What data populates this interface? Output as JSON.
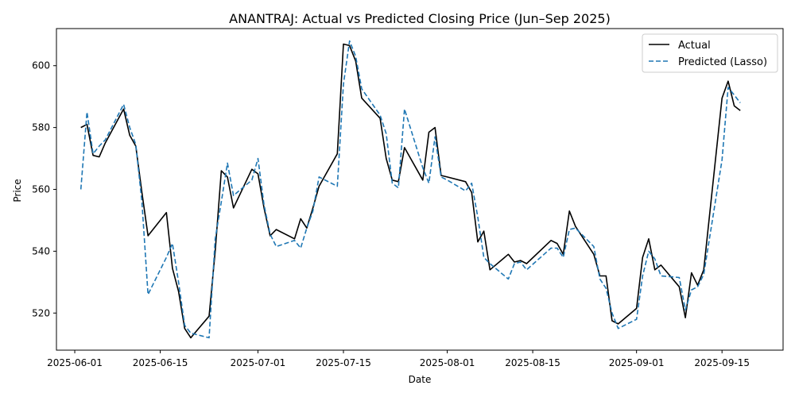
{
  "chart_data": {
    "type": "line",
    "title": "ANANTRAJ: Actual vs Predicted Closing Price (Jun–Sep 2025)",
    "xlabel": "Date",
    "ylabel": "Price",
    "xlim": [
      "2025-05-29",
      "2025-09-25"
    ],
    "ylim": [
      508,
      612
    ],
    "x_ticks": [
      "2025-06-01",
      "2025-06-15",
      "2025-07-01",
      "2025-07-15",
      "2025-08-01",
      "2025-08-15",
      "2025-09-01",
      "2025-09-15"
    ],
    "y_ticks": [
      520,
      540,
      560,
      580,
      600
    ],
    "grid": false,
    "legend": "top-right",
    "series": [
      {
        "name": "Actual",
        "color": "#000000",
        "style": "solid",
        "points": [
          [
            "2025-06-02",
            580
          ],
          [
            "2025-06-03",
            581
          ],
          [
            "2025-06-04",
            571
          ],
          [
            "2025-06-05",
            570.5
          ],
          [
            "2025-06-06",
            575
          ],
          [
            "2025-06-09",
            586
          ],
          [
            "2025-06-10",
            577.5
          ],
          [
            "2025-06-11",
            574
          ],
          [
            "2025-06-12",
            559
          ],
          [
            "2025-06-13",
            545
          ],
          [
            "2025-06-16",
            552.5
          ],
          [
            "2025-06-17",
            534.5
          ],
          [
            "2025-06-18",
            527
          ],
          [
            "2025-06-19",
            515
          ],
          [
            "2025-06-20",
            512
          ],
          [
            "2025-06-23",
            519
          ],
          [
            "2025-06-24",
            540
          ],
          [
            "2025-06-25",
            566
          ],
          [
            "2025-06-26",
            564
          ],
          [
            "2025-06-27",
            554
          ],
          [
            "2025-06-30",
            566.5
          ],
          [
            "2025-07-01",
            565
          ],
          [
            "2025-07-02",
            554
          ],
          [
            "2025-07-03",
            545
          ],
          [
            "2025-07-04",
            547
          ],
          [
            "2025-07-07",
            544
          ],
          [
            "2025-07-08",
            550.5
          ],
          [
            "2025-07-09",
            547.5
          ],
          [
            "2025-07-10",
            554
          ],
          [
            "2025-07-11",
            561
          ],
          [
            "2025-07-14",
            571.5
          ],
          [
            "2025-07-15",
            607
          ],
          [
            "2025-07-16",
            606.5
          ],
          [
            "2025-07-17",
            601.5
          ],
          [
            "2025-07-18",
            589.5
          ],
          [
            "2025-07-21",
            583
          ],
          [
            "2025-07-22",
            570
          ],
          [
            "2025-07-23",
            563
          ],
          [
            "2025-07-24",
            562.5
          ],
          [
            "2025-07-25",
            573.5
          ],
          [
            "2025-07-28",
            563
          ],
          [
            "2025-07-29",
            578.5
          ],
          [
            "2025-07-30",
            580
          ],
          [
            "2025-07-31",
            564.5
          ],
          [
            "2025-08-01",
            564
          ],
          [
            "2025-08-04",
            562.5
          ],
          [
            "2025-08-05",
            559
          ],
          [
            "2025-08-06",
            543
          ],
          [
            "2025-08-07",
            546.5
          ],
          [
            "2025-08-08",
            534
          ],
          [
            "2025-08-11",
            539
          ],
          [
            "2025-08-12",
            536.5
          ],
          [
            "2025-08-13",
            537
          ],
          [
            "2025-08-14",
            536
          ],
          [
            "2025-08-18",
            543.5
          ],
          [
            "2025-08-19",
            542.5
          ],
          [
            "2025-08-20",
            539
          ],
          [
            "2025-08-21",
            553
          ],
          [
            "2025-08-22",
            548
          ],
          [
            "2025-08-25",
            539
          ],
          [
            "2025-08-26",
            532
          ],
          [
            "2025-08-27",
            532
          ],
          [
            "2025-08-28",
            517.5
          ],
          [
            "2025-08-29",
            516.5
          ],
          [
            "2025-09-01",
            521.5
          ],
          [
            "2025-09-02",
            538
          ],
          [
            "2025-09-03",
            544
          ],
          [
            "2025-09-04",
            534
          ],
          [
            "2025-09-05",
            535.5
          ],
          [
            "2025-09-08",
            528.5
          ],
          [
            "2025-09-09",
            518.5
          ],
          [
            "2025-09-10",
            533
          ],
          [
            "2025-09-11",
            529
          ],
          [
            "2025-09-12",
            534
          ],
          [
            "2025-09-15",
            589.5
          ],
          [
            "2025-09-16",
            595
          ],
          [
            "2025-09-17",
            587
          ],
          [
            "2025-09-18",
            585.5
          ]
        ]
      },
      {
        "name": "Predicted (Lasso)",
        "color": "#1f77b4",
        "style": "dashed",
        "points": [
          [
            "2025-06-02",
            560
          ],
          [
            "2025-06-03",
            585
          ],
          [
            "2025-06-04",
            571.5
          ],
          [
            "2025-06-05",
            574
          ],
          [
            "2025-06-06",
            576
          ],
          [
            "2025-06-09",
            587.5
          ],
          [
            "2025-06-10",
            580
          ],
          [
            "2025-06-11",
            574.5
          ],
          [
            "2025-06-12",
            556
          ],
          [
            "2025-06-13",
            526
          ],
          [
            "2025-06-16",
            538
          ],
          [
            "2025-06-17",
            542.5
          ],
          [
            "2025-06-18",
            530
          ],
          [
            "2025-06-19",
            516
          ],
          [
            "2025-06-20",
            513.5
          ],
          [
            "2025-06-23",
            512
          ],
          [
            "2025-06-24",
            544
          ],
          [
            "2025-06-25",
            556
          ],
          [
            "2025-06-26",
            568.5
          ],
          [
            "2025-06-27",
            558
          ],
          [
            "2025-06-30",
            563
          ],
          [
            "2025-07-01",
            570
          ],
          [
            "2025-07-02",
            555
          ],
          [
            "2025-07-03",
            545.5
          ],
          [
            "2025-07-04",
            541.5
          ],
          [
            "2025-07-07",
            543.5
          ],
          [
            "2025-07-08",
            541
          ],
          [
            "2025-07-09",
            547.5
          ],
          [
            "2025-07-10",
            553
          ],
          [
            "2025-07-11",
            564
          ],
          [
            "2025-07-14",
            561
          ],
          [
            "2025-07-15",
            594
          ],
          [
            "2025-07-16",
            608
          ],
          [
            "2025-07-17",
            603
          ],
          [
            "2025-07-18",
            592.5
          ],
          [
            "2025-07-21",
            584
          ],
          [
            "2025-07-22",
            578
          ],
          [
            "2025-07-23",
            562
          ],
          [
            "2025-07-24",
            560.5
          ],
          [
            "2025-07-25",
            586
          ],
          [
            "2025-07-28",
            567
          ],
          [
            "2025-07-29",
            562
          ],
          [
            "2025-07-30",
            577
          ],
          [
            "2025-07-31",
            564
          ],
          [
            "2025-08-01",
            563
          ],
          [
            "2025-08-04",
            559.5
          ],
          [
            "2025-08-05",
            562
          ],
          [
            "2025-08-06",
            551
          ],
          [
            "2025-08-07",
            538
          ],
          [
            "2025-08-08",
            536
          ],
          [
            "2025-08-11",
            531
          ],
          [
            "2025-08-12",
            536
          ],
          [
            "2025-08-13",
            536.5
          ],
          [
            "2025-08-14",
            534
          ],
          [
            "2025-08-18",
            541
          ],
          [
            "2025-08-19",
            541
          ],
          [
            "2025-08-20",
            538
          ],
          [
            "2025-08-21",
            547
          ],
          [
            "2025-08-22",
            547.5
          ],
          [
            "2025-08-25",
            541.5
          ],
          [
            "2025-08-26",
            531
          ],
          [
            "2025-08-27",
            528
          ],
          [
            "2025-08-28",
            520
          ],
          [
            "2025-08-29",
            515
          ],
          [
            "2025-09-01",
            518
          ],
          [
            "2025-09-02",
            532
          ],
          [
            "2025-09-03",
            540
          ],
          [
            "2025-09-04",
            537.5
          ],
          [
            "2025-09-05",
            532
          ],
          [
            "2025-09-08",
            531.5
          ],
          [
            "2025-09-09",
            521
          ],
          [
            "2025-09-10",
            527.5
          ],
          [
            "2025-09-11",
            528.5
          ],
          [
            "2025-09-12",
            532.5
          ],
          [
            "2025-09-15",
            569.5
          ],
          [
            "2025-09-16",
            593
          ],
          [
            "2025-09-17",
            590.5
          ],
          [
            "2025-09-18",
            588
          ]
        ]
      }
    ]
  }
}
